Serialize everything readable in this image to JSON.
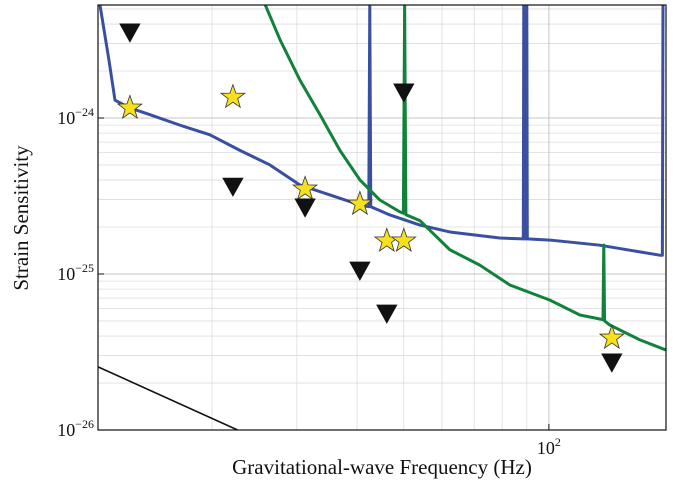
{
  "chart_data": {
    "type": "line",
    "xlabel": "Gravitational-wave Frequency (Hz)",
    "ylabel": "Strain Sensitivity",
    "xscale": "log",
    "yscale": "log",
    "xlim": [
      11.6,
      175
    ],
    "ylim": [
      1e-26,
      5.3e-24
    ],
    "xticks": [
      {
        "value": 100,
        "label": "10",
        "exponent": "2"
      }
    ],
    "yticks": [
      {
        "value": 1e-26,
        "label": "10",
        "exponent": "−26"
      },
      {
        "value": 1e-25,
        "label": "10",
        "exponent": "−25"
      },
      {
        "value": 1e-24,
        "label": "10",
        "exponent": "−24"
      }
    ],
    "xminorticks": [
      20,
      30,
      40,
      50,
      60,
      70,
      80,
      90
    ],
    "yminorticks": [
      2e-26,
      3e-26,
      4e-26,
      5e-26,
      6e-26,
      7e-26,
      8e-26,
      9e-26,
      2e-25,
      3e-25,
      4e-25,
      5e-25,
      6e-25,
      7e-25,
      8e-25,
      9e-25,
      2e-24,
      3e-24,
      4e-24,
      5e-24
    ],
    "grid": true,
    "series": [
      {
        "color": "#3a4fa0",
        "x": [
          11.71,
          12.22,
          12.58,
          13.51,
          14.87,
          17.15,
          19.8,
          22.85,
          26.38,
          30.44,
          35.13,
          40.54,
          42.3,
          42.5,
          42.7,
          46.79,
          54.0,
          62.3,
          79.1,
          88.5,
          88.7,
          88.9,
          89.8,
          90.0,
          90.2,
          100.5,
          127.6,
          169.9,
          172,
          172.5
        ],
        "values": [
          5.3e-24,
          2.36e-24,
          1.3e-24,
          1.16e-24,
          1.05e-24,
          9e-25,
          7.8e-25,
          6.2e-25,
          5e-25,
          3.72e-25,
          3.21e-25,
          2.77e-25,
          2.7e-25,
          5.3e-24,
          2.7e-25,
          2.39e-25,
          2.06e-25,
          1.86e-25,
          1.7e-25,
          1.68e-25,
          5.3e-24,
          1.68e-25,
          1.68e-25,
          5.3e-24,
          1.68e-25,
          1.65e-25,
          1.53e-25,
          1.32e-25,
          1.32e-25,
          5.3e-24
        ]
      },
      {
        "color": "#12823a",
        "x": [
          25.8,
          27.7,
          30.44,
          33.5,
          36.85,
          40.54,
          44.6,
          49.1,
          49.9,
          50.2,
          50.5,
          54.0,
          62.3,
          71.9,
          83.0,
          100.5,
          116,
          129.5,
          130,
          130.5,
          133.8,
          154.5,
          174.8
        ],
        "values": [
          5.3e-24,
          3.16e-24,
          1.75e-24,
          1.05e-24,
          6.2e-25,
          4.01e-25,
          2.98e-25,
          2.5e-25,
          2.45e-25,
          5.3e-24,
          2.4e-25,
          2.2e-25,
          1.43e-25,
          1.14e-25,
          8.5e-26,
          6.8e-26,
          5.46e-26,
          5.1e-26,
          1.53e-25,
          5e-26,
          4.71e-26,
          3.78e-26,
          3.26e-26
        ]
      },
      {
        "color": "#111111",
        "x": [
          11.6,
          22.6
        ],
        "values": [
          2.54e-26,
          1e-26
        ]
      }
    ],
    "markers": [
      {
        "marker": "star",
        "color": "#f7e01c",
        "x": [
          13.51,
          22.1,
          31.2,
          40.54,
          46.1,
          50.0,
          135.1
        ],
        "values": [
          1.16e-24,
          1.36e-24,
          3.51e-25,
          2.81e-25,
          1.63e-25,
          1.63e-25,
          3.89e-26
        ]
      },
      {
        "marker": "triangle-down",
        "color": "#111111",
        "x": [
          13.51,
          22.1,
          31.2,
          40.54,
          46.1,
          50.0,
          135.1
        ],
        "values": [
          3.56e-24,
          3.66e-25,
          2.69e-25,
          1.06e-25,
          5.62e-26,
          1.47e-24,
          2.73e-26
        ]
      }
    ]
  }
}
